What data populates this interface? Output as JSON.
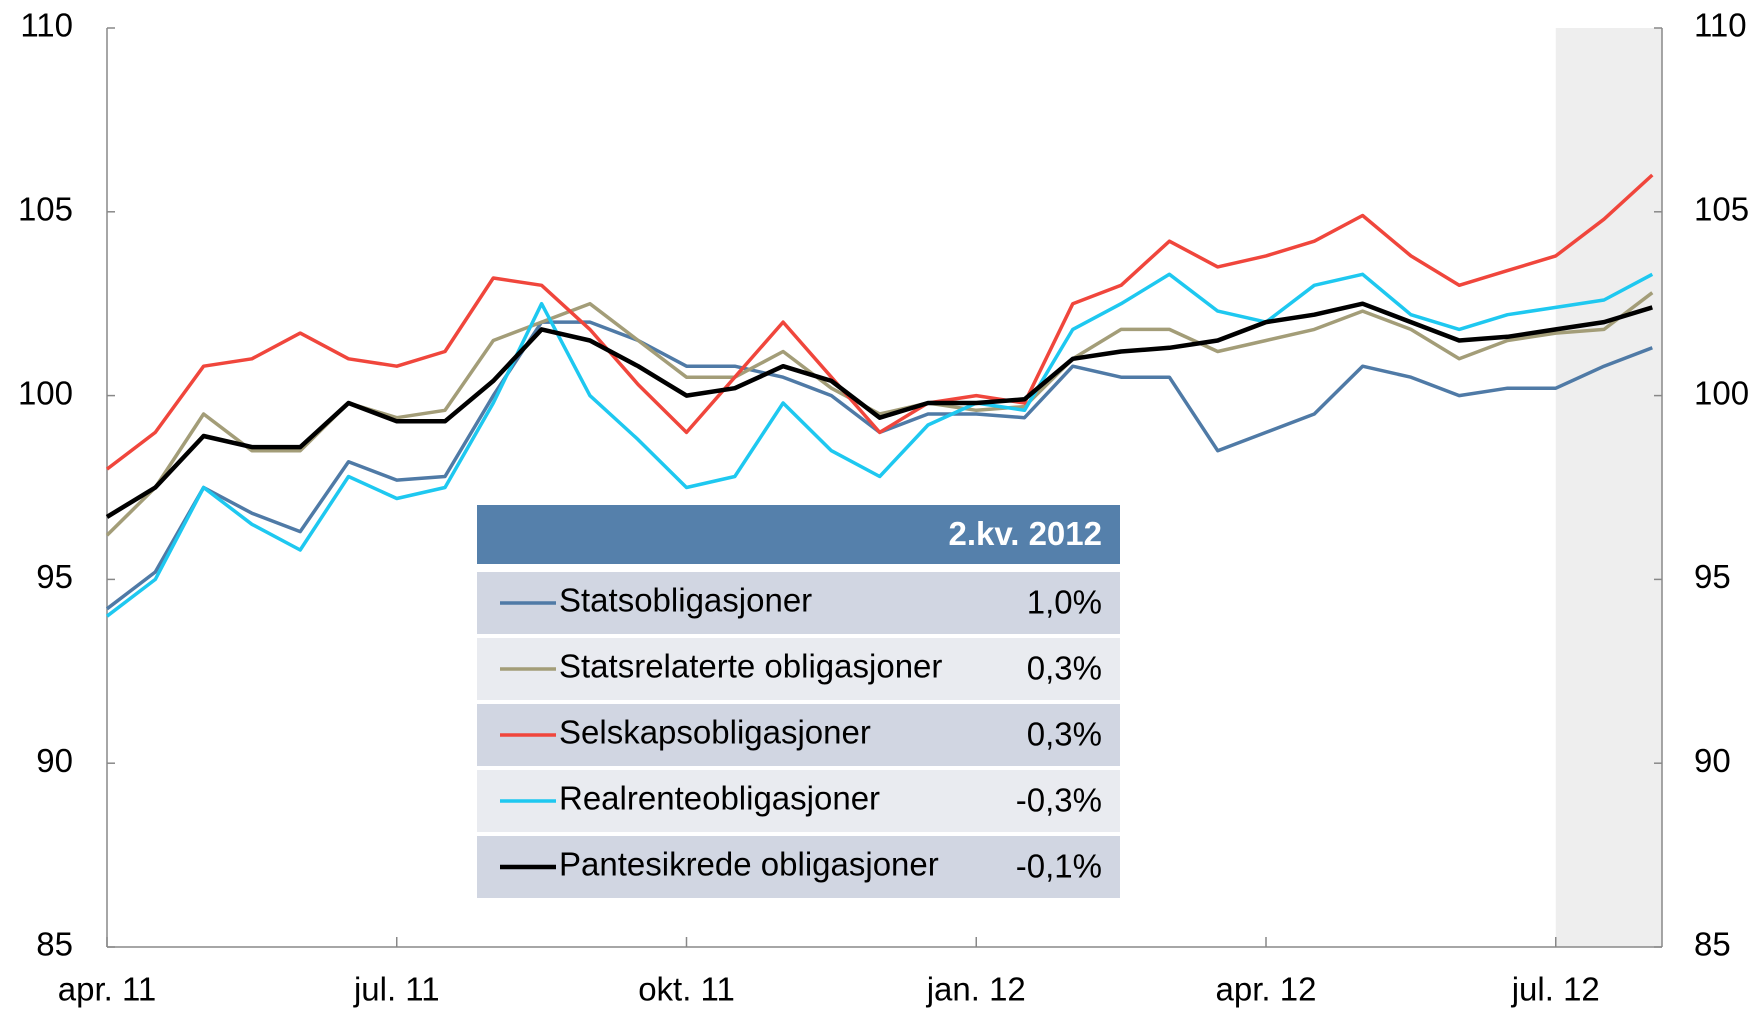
{
  "chart_data": {
    "type": "line",
    "x": [
      0,
      0.5,
      1,
      1.5,
      2,
      2.5,
      3,
      3.5,
      4,
      4.5,
      5,
      5.5,
      6,
      6.5,
      7,
      7.5,
      8,
      8.5,
      9,
      9.5,
      10,
      10.5,
      11,
      11.5,
      12,
      12.5,
      13,
      13.5,
      14,
      14.5,
      15,
      15.5,
      16
    ],
    "xlim": [
      0,
      16.1
    ],
    "xticks": [
      {
        "value": 0,
        "label": "apr. 11"
      },
      {
        "value": 3,
        "label": "jul. 11"
      },
      {
        "value": 6,
        "label": "okt. 11"
      },
      {
        "value": 9,
        "label": "jan. 12"
      },
      {
        "value": 12,
        "label": "apr. 12"
      },
      {
        "value": 15,
        "label": "jul. 12"
      }
    ],
    "ylim": [
      85,
      110
    ],
    "yticks": [
      85,
      90,
      95,
      100,
      105,
      110
    ],
    "y2lim": [
      85,
      110
    ],
    "y2ticks": [
      85,
      90,
      95,
      100,
      105,
      110
    ],
    "highlight_x": [
      15,
      16.1
    ],
    "highlight_color": "#eeeeee",
    "series": [
      {
        "name": "Statsobligasjoner",
        "color": "#4f7aa6",
        "values": [
          94.2,
          95.2,
          97.5,
          96.8,
          96.3,
          98.2,
          97.7,
          97.8,
          100.0,
          102.0,
          102.0,
          101.5,
          100.8,
          100.8,
          100.5,
          100.0,
          99.0,
          99.5,
          99.5,
          99.4,
          100.8,
          100.5,
          100.5,
          98.5,
          99.0,
          99.5,
          100.8,
          100.5,
          100.0,
          100.2,
          100.2,
          100.8,
          101.3
        ]
      },
      {
        "name": "Statsrelaterte obligasjoner",
        "color": "#a39d78",
        "values": [
          96.2,
          97.5,
          99.5,
          98.5,
          98.5,
          99.8,
          99.4,
          99.6,
          101.5,
          102.0,
          102.5,
          101.5,
          100.5,
          100.5,
          101.2,
          100.2,
          99.5,
          99.8,
          99.6,
          99.7,
          101.0,
          101.8,
          101.8,
          101.2,
          101.5,
          101.8,
          102.3,
          101.8,
          101.0,
          101.5,
          101.7,
          101.8,
          102.8
        ]
      },
      {
        "name": "Selskapsobligasjoner",
        "color": "#f0463c",
        "values": [
          98.0,
          99.0,
          100.8,
          101.0,
          101.7,
          101.0,
          100.8,
          101.2,
          103.2,
          103.0,
          101.8,
          100.3,
          99.0,
          100.5,
          102.0,
          100.5,
          99.0,
          99.8,
          100.0,
          99.8,
          102.5,
          103.0,
          104.2,
          103.5,
          103.8,
          104.2,
          104.9,
          103.8,
          103.0,
          103.4,
          103.8,
          104.8,
          106.0
        ]
      },
      {
        "name": "Realrenteobligasjoner",
        "color": "#1ec8f0",
        "values": [
          94.0,
          95.0,
          97.5,
          96.5,
          95.8,
          97.8,
          97.2,
          97.5,
          99.8,
          102.5,
          100.0,
          98.8,
          97.5,
          97.8,
          99.8,
          98.5,
          97.8,
          99.2,
          99.8,
          99.6,
          101.8,
          102.5,
          103.3,
          102.3,
          102.0,
          103.0,
          103.3,
          102.2,
          101.8,
          102.2,
          102.4,
          102.6,
          103.3
        ]
      },
      {
        "name": "Pantesikrede obligasjoner",
        "color": "#000000",
        "values": [
          96.7,
          97.5,
          98.9,
          98.6,
          98.6,
          99.8,
          99.3,
          99.3,
          100.4,
          101.8,
          101.5,
          100.8,
          100.0,
          100.2,
          100.8,
          100.4,
          99.4,
          99.8,
          99.8,
          99.9,
          101.0,
          101.2,
          101.3,
          101.5,
          102.0,
          102.2,
          102.5,
          102.0,
          101.5,
          101.6,
          101.8,
          102.0,
          102.4
        ]
      }
    ],
    "legend_table": {
      "header": "2.kv. 2012",
      "values": [
        1.0,
        0.3,
        0.3,
        -0.3,
        -0.1
      ],
      "value_labels": [
        "1,0%",
        "0,3%",
        "0,3%",
        "-0,3%",
        "-0,1%"
      ]
    }
  }
}
